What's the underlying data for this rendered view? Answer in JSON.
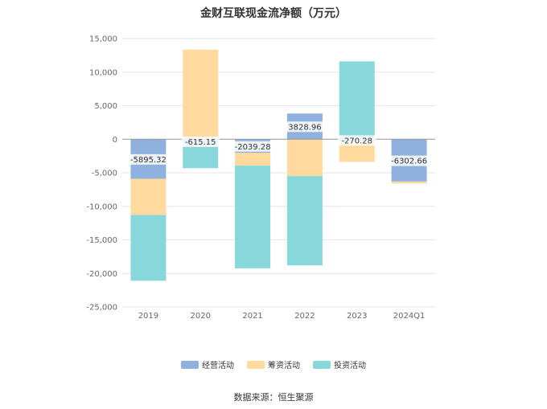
{
  "chart_data": {
    "type": "bar",
    "stacked": true,
    "title": "金财互联现金流净额（万元）",
    "categories": [
      "2019",
      "2020",
      "2021",
      "2022",
      "2023",
      "2024Q1"
    ],
    "series": [
      {
        "name": "经营活动",
        "color": "#8eb1dd",
        "values": [
          -5895.32,
          -615.15,
          -2039.28,
          3828.96,
          -270.28,
          -6302.66
        ]
      },
      {
        "name": "筹资活动",
        "color": "#ffd99e",
        "values": [
          -5400,
          13350,
          -1900,
          -5500,
          -3100,
          -300
        ]
      },
      {
        "name": "投资活动",
        "color": "#88d7da",
        "values": [
          -9800,
          -3700,
          -15300,
          -13300,
          11600,
          0
        ]
      }
    ],
    "data_labels": [
      "-5895.32",
      "-615.15",
      "-2039.28",
      "3828.96",
      "-270.28",
      "-6302.66"
    ],
    "ylim": [
      -25000,
      15000
    ],
    "yticks": [
      "15,000",
      "10,000",
      "5,000",
      "0",
      "-5,000",
      "-10,000",
      "-15,000",
      "-20,000",
      "-25,000"
    ],
    "grid": true,
    "legend": "bottom"
  },
  "source_text": "数据来源：恒生聚源"
}
